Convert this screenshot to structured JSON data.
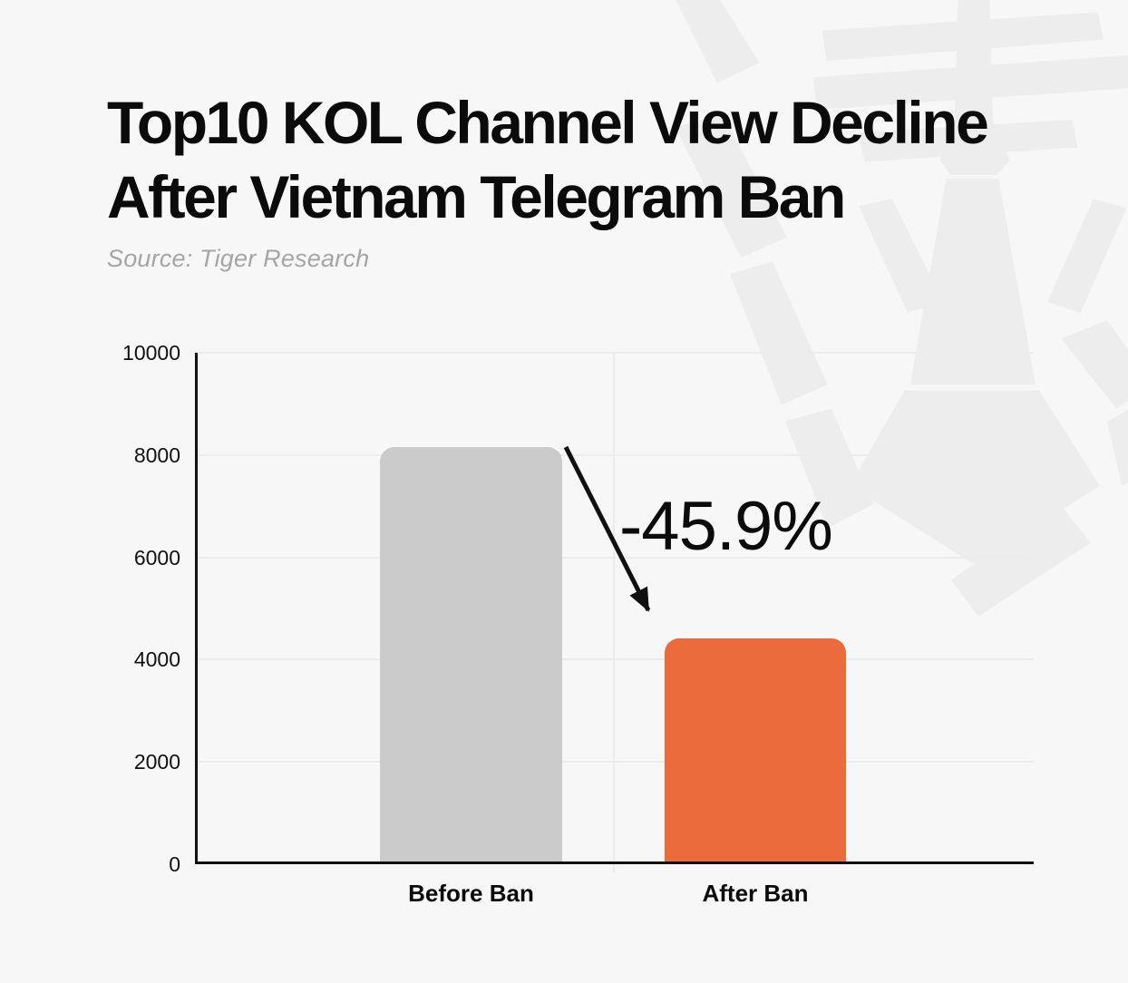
{
  "header": {
    "title_line1": "Top10 KOL Channel View Decline",
    "title_line2": "After Vietnam Telegram Ban",
    "source": "Source: Tiger Research"
  },
  "colors": {
    "background": "#F7F7F7",
    "watermark": "#EDEDED",
    "axis": "#111111",
    "gridline": "#ECECEC",
    "title_text": "#0B0B0B",
    "source_text": "#A5A5A8"
  },
  "watermark_icon": "tiger-face",
  "chart_data": {
    "type": "bar",
    "title": "Top10 KOL Channel View Decline After Vietnam Telegram Ban",
    "categories": [
      "Before Ban",
      "After Ban"
    ],
    "values": [
      8150,
      4410
    ],
    "colors": [
      "#CBCBCB",
      "#EC6B3C"
    ],
    "xlabel": "",
    "ylabel": "",
    "ylim": [
      0,
      10000
    ],
    "yticks": [
      0,
      2000,
      4000,
      6000,
      8000,
      10000
    ],
    "grid": "horizontal gridlines at each ytick plus one vertical gridline between categories",
    "legend": "none",
    "annotation": {
      "label": "-45.9%",
      "type": "decline-arrow",
      "from_category": "Before Ban",
      "to_category": "After Ban"
    }
  }
}
